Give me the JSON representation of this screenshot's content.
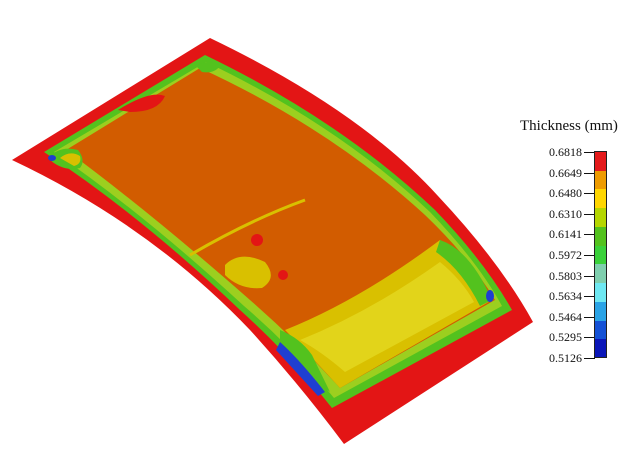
{
  "legend": {
    "title": "Thickness (mm)",
    "ticks": [
      "0.6818",
      "0.6649",
      "0.6480",
      "0.6310",
      "0.6141",
      "0.5972",
      "0.5803",
      "0.5634",
      "0.5464",
      "0.5295",
      "0.5126"
    ],
    "colors": [
      "#e41a1c",
      "#ee9b00",
      "#ffd600",
      "#b5d600",
      "#53c21e",
      "#3ad13a",
      "#7fcfae",
      "#6ee8f2",
      "#2aa3e6",
      "#1451d6",
      "#0a16b8"
    ]
  },
  "palette": {
    "flange": "#e31515",
    "top": "#d25c00",
    "yellow": "#d9c000",
    "lightyellow": "#e2d41a",
    "green": "#4fbf2a",
    "lime": "#9ccf1f",
    "cyan": "#59e3e3",
    "blue": "#1f3fd1"
  }
}
